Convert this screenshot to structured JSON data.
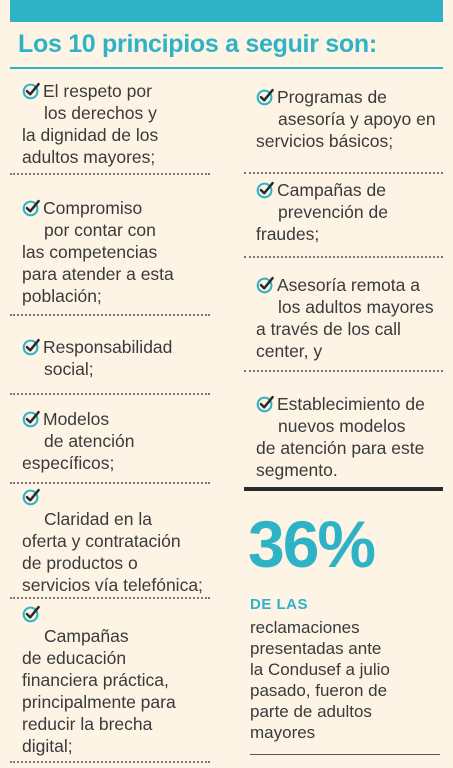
{
  "title": "Los 10 principios a seguir son:",
  "left_items": [
    {
      "first": "El respeto por",
      "rest": [
        "los derechos y",
        "la dignidad de los",
        "adultos mayores;"
      ]
    },
    {
      "first": "Compromiso",
      "rest": [
        "por contar con",
        "las competencias",
        "para atender a esta",
        "población;"
      ]
    },
    {
      "first": "Responsabilidad",
      "rest": [
        "social;"
      ]
    },
    {
      "first": "Modelos",
      "rest": [
        "de atención",
        "específicos;"
      ]
    },
    {
      "first": "",
      "rest": [
        "Claridad en la",
        "oferta y contratación",
        "de productos o",
        "servicios vía telefónica;"
      ]
    },
    {
      "first": "",
      "rest": [
        "Campañas",
        "de educación",
        "financiera práctica,",
        "principalmente para",
        "reducir la brecha",
        "digital;"
      ]
    }
  ],
  "right_items": [
    {
      "first": "Programas de",
      "rest": [
        "asesoría y apoyo en",
        "servicios básicos;"
      ]
    },
    {
      "first": "Campañas de",
      "rest": [
        "prevención de",
        "fraudes;"
      ]
    },
    {
      "first": "Asesoría remota a",
      "rest": [
        "los adultos mayores",
        "a través de los call",
        "center, y"
      ]
    },
    {
      "first": "Establecimiento de",
      "rest": [
        "nuevos modelos",
        "de atención para este",
        "segmento."
      ]
    }
  ],
  "stat": {
    "value": "36%",
    "label": "DE LAS",
    "lines": [
      "reclamaciones",
      "presentadas ante",
      "la Condusef a julio",
      "pasado, fueron de",
      "parte de adultos",
      "mayores"
    ]
  },
  "colors": {
    "accent": "#2eb3c6",
    "check": "#2a2a2a",
    "text": "#3a3a3a",
    "background": "#fdf4e6"
  },
  "icons": {
    "check": "check-circle-icon"
  }
}
